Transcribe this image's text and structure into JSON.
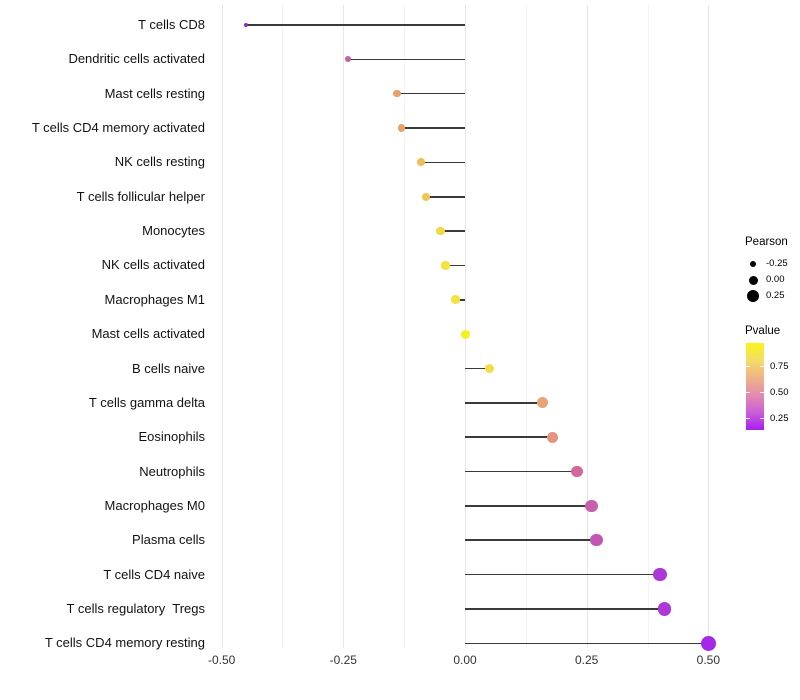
{
  "chart_data": {
    "type": "scatter",
    "subtype": "lollipop",
    "title": "",
    "xlabel": "",
    "ylabel": "",
    "xlim": [
      -0.55,
      0.58
    ],
    "grid": "vertical-major-and-minor",
    "legend_position": "right",
    "background": "#ffffff",
    "stem_color": "#3a3a3a",
    "x_ticks": [
      {
        "value": -0.5,
        "label": "-0.50"
      },
      {
        "value": -0.25,
        "label": "-0.25"
      },
      {
        "value": 0.0,
        "label": "0.00"
      },
      {
        "value": 0.25,
        "label": "0.25"
      },
      {
        "value": 0.5,
        "label": "0.50"
      }
    ],
    "x_minor_ticks": [
      -0.375,
      -0.125,
      0.125,
      0.375
    ],
    "points": [
      {
        "category": "T cells CD8",
        "pearson": -0.45,
        "color": "#8f2bbf"
      },
      {
        "category": "Dendritic cells activated",
        "pearson": -0.24,
        "color": "#c4619f"
      },
      {
        "category": "Mast cells resting",
        "pearson": -0.14,
        "color": "#e6a069"
      },
      {
        "category": "T cells CD4 memory activated",
        "pearson": -0.13,
        "color": "#e6a069"
      },
      {
        "category": "NK cells resting",
        "pearson": -0.09,
        "color": "#edbd5c"
      },
      {
        "category": "T cells follicular helper",
        "pearson": -0.08,
        "color": "#efc654"
      },
      {
        "category": "Monocytes",
        "pearson": -0.05,
        "color": "#f2d843"
      },
      {
        "category": "NK cells activated",
        "pearson": -0.04,
        "color": "#f4e33c"
      },
      {
        "category": "Macrophages M1",
        "pearson": -0.02,
        "color": "#f4e33c"
      },
      {
        "category": "Mast cells activated",
        "pearson": 0.0,
        "color": "#f8f01c"
      },
      {
        "category": "B cells naive",
        "pearson": 0.05,
        "color": "#f4dc46"
      },
      {
        "category": "T cells gamma delta",
        "pearson": 0.16,
        "color": "#e8a476"
      },
      {
        "category": "Eosinophils",
        "pearson": 0.18,
        "color": "#e59280"
      },
      {
        "category": "Neutrophils",
        "pearson": 0.23,
        "color": "#d4689d"
      },
      {
        "category": "Macrophages M0",
        "pearson": 0.26,
        "color": "#c75fad"
      },
      {
        "category": "Plasma cells",
        "pearson": 0.27,
        "color": "#c455b5"
      },
      {
        "category": "T cells CD4 naive",
        "pearson": 0.4,
        "color": "#ab38d7"
      },
      {
        "category": "T cells regulatory  Tregs",
        "pearson": 0.41,
        "color": "#ab38d7"
      },
      {
        "category": "T cells CD4 memory resting",
        "pearson": 0.5,
        "color": "#a527ea"
      }
    ],
    "legends": {
      "size": {
        "title": "Pearson",
        "dot_color": "#000000",
        "entries": [
          {
            "label": "-0.25",
            "value": -0.25
          },
          {
            "label": "0.00",
            "value": 0.0
          },
          {
            "label": "0.25",
            "value": 0.25
          }
        ]
      },
      "color": {
        "title": "Pvalue",
        "gradient_top_to_bottom": [
          "#f9f418",
          "#f5dc69",
          "#efb286",
          "#e38bb0",
          "#cb5ed7",
          "#a81ff2"
        ],
        "ticks": [
          {
            "label": "0.75",
            "value": 0.75
          },
          {
            "label": "0.50",
            "value": 0.5
          },
          {
            "label": "0.25",
            "value": 0.25
          }
        ]
      }
    }
  }
}
